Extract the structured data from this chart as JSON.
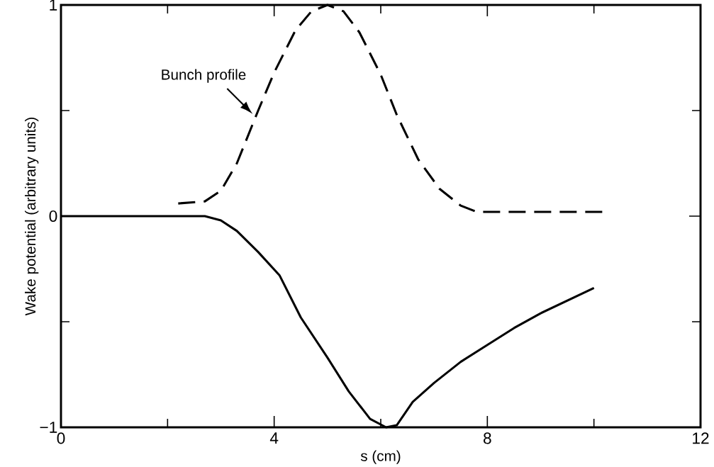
{
  "chart_data": {
    "type": "line",
    "xlabel": "s  (cm)",
    "ylabel": "Wake potential  (arbitrary units)",
    "xlim": [
      0,
      12
    ],
    "ylim": [
      -1,
      1
    ],
    "xticks": [
      0,
      4,
      8,
      12
    ],
    "yticks": [
      {
        "value": -1,
        "label": "−1"
      },
      0,
      1
    ],
    "grid": false,
    "series": [
      {
        "color": "#000000",
        "line_style": "dashed",
        "x": [
          2.2,
          2.7,
          3.0,
          3.3,
          3.7,
          4.0,
          4.4,
          4.7,
          5.0,
          5.3,
          5.6,
          6.0,
          6.3,
          6.7,
          7.1,
          7.5,
          7.8,
          10.2
        ],
        "values": [
          0.06,
          0.07,
          0.12,
          0.25,
          0.5,
          0.68,
          0.88,
          0.97,
          1.0,
          0.97,
          0.87,
          0.67,
          0.48,
          0.27,
          0.13,
          0.05,
          0.02,
          0.02
        ]
      },
      {
        "color": "#000000",
        "line_style": "solid",
        "x": [
          0,
          2.7,
          3.0,
          3.3,
          3.7,
          4.1,
          4.5,
          5.0,
          5.4,
          5.8,
          6.1,
          6.3,
          6.6,
          7.0,
          7.5,
          8.0,
          8.5,
          9.0,
          9.5,
          10.0
        ],
        "values": [
          0,
          0,
          -0.02,
          -0.07,
          -0.17,
          -0.28,
          -0.48,
          -0.67,
          -0.83,
          -0.96,
          -1.0,
          -0.99,
          -0.88,
          -0.79,
          -0.69,
          -0.61,
          -0.53,
          -0.46,
          -0.4,
          -0.34
        ]
      }
    ],
    "annotations": [
      {
        "text": "Bunch profile",
        "x": 3.65,
        "y": 0.47
      }
    ]
  }
}
